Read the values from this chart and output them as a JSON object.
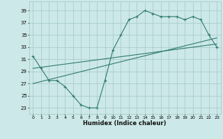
{
  "xlabel": "Humidex (Indice chaleur)",
  "background_color": "#cce8e8",
  "grid_color": "#aacccc",
  "line_color": "#2d7a6b",
  "xlim": [
    -0.5,
    23.5
  ],
  "ylim": [
    22,
    40.5
  ],
  "yticks": [
    23,
    25,
    27,
    29,
    31,
    33,
    35,
    37,
    39
  ],
  "xticks": [
    0,
    1,
    2,
    3,
    4,
    5,
    6,
    7,
    8,
    9,
    10,
    11,
    12,
    13,
    14,
    15,
    16,
    17,
    18,
    19,
    20,
    21,
    22,
    23
  ],
  "xtick_labels": [
    "0",
    "1",
    "2",
    "3",
    "4",
    "5",
    "6",
    "7",
    "8",
    "9",
    "10",
    "11",
    "12",
    "13",
    "14",
    "15",
    "16",
    "17",
    "18",
    "19",
    "20",
    "21",
    "22",
    "23"
  ],
  "series1_x": [
    0,
    1,
    2,
    3,
    4,
    5,
    6,
    7,
    8,
    9,
    10,
    11,
    12,
    13,
    14,
    15,
    16,
    17,
    18,
    19,
    20,
    21,
    22,
    23
  ],
  "series1_y": [
    31.5,
    29.5,
    27.5,
    27.5,
    26.5,
    25.0,
    23.5,
    23.0,
    23.0,
    27.5,
    32.5,
    35.0,
    37.5,
    38.0,
    39.0,
    38.5,
    38.0,
    38.0,
    38.0,
    37.5,
    38.0,
    37.5,
    35.0,
    33.0
  ],
  "series2_x": [
    0,
    23
  ],
  "series2_y": [
    29.5,
    33.5
  ],
  "series3_x": [
    0,
    23
  ],
  "series3_y": [
    27.0,
    34.5
  ]
}
